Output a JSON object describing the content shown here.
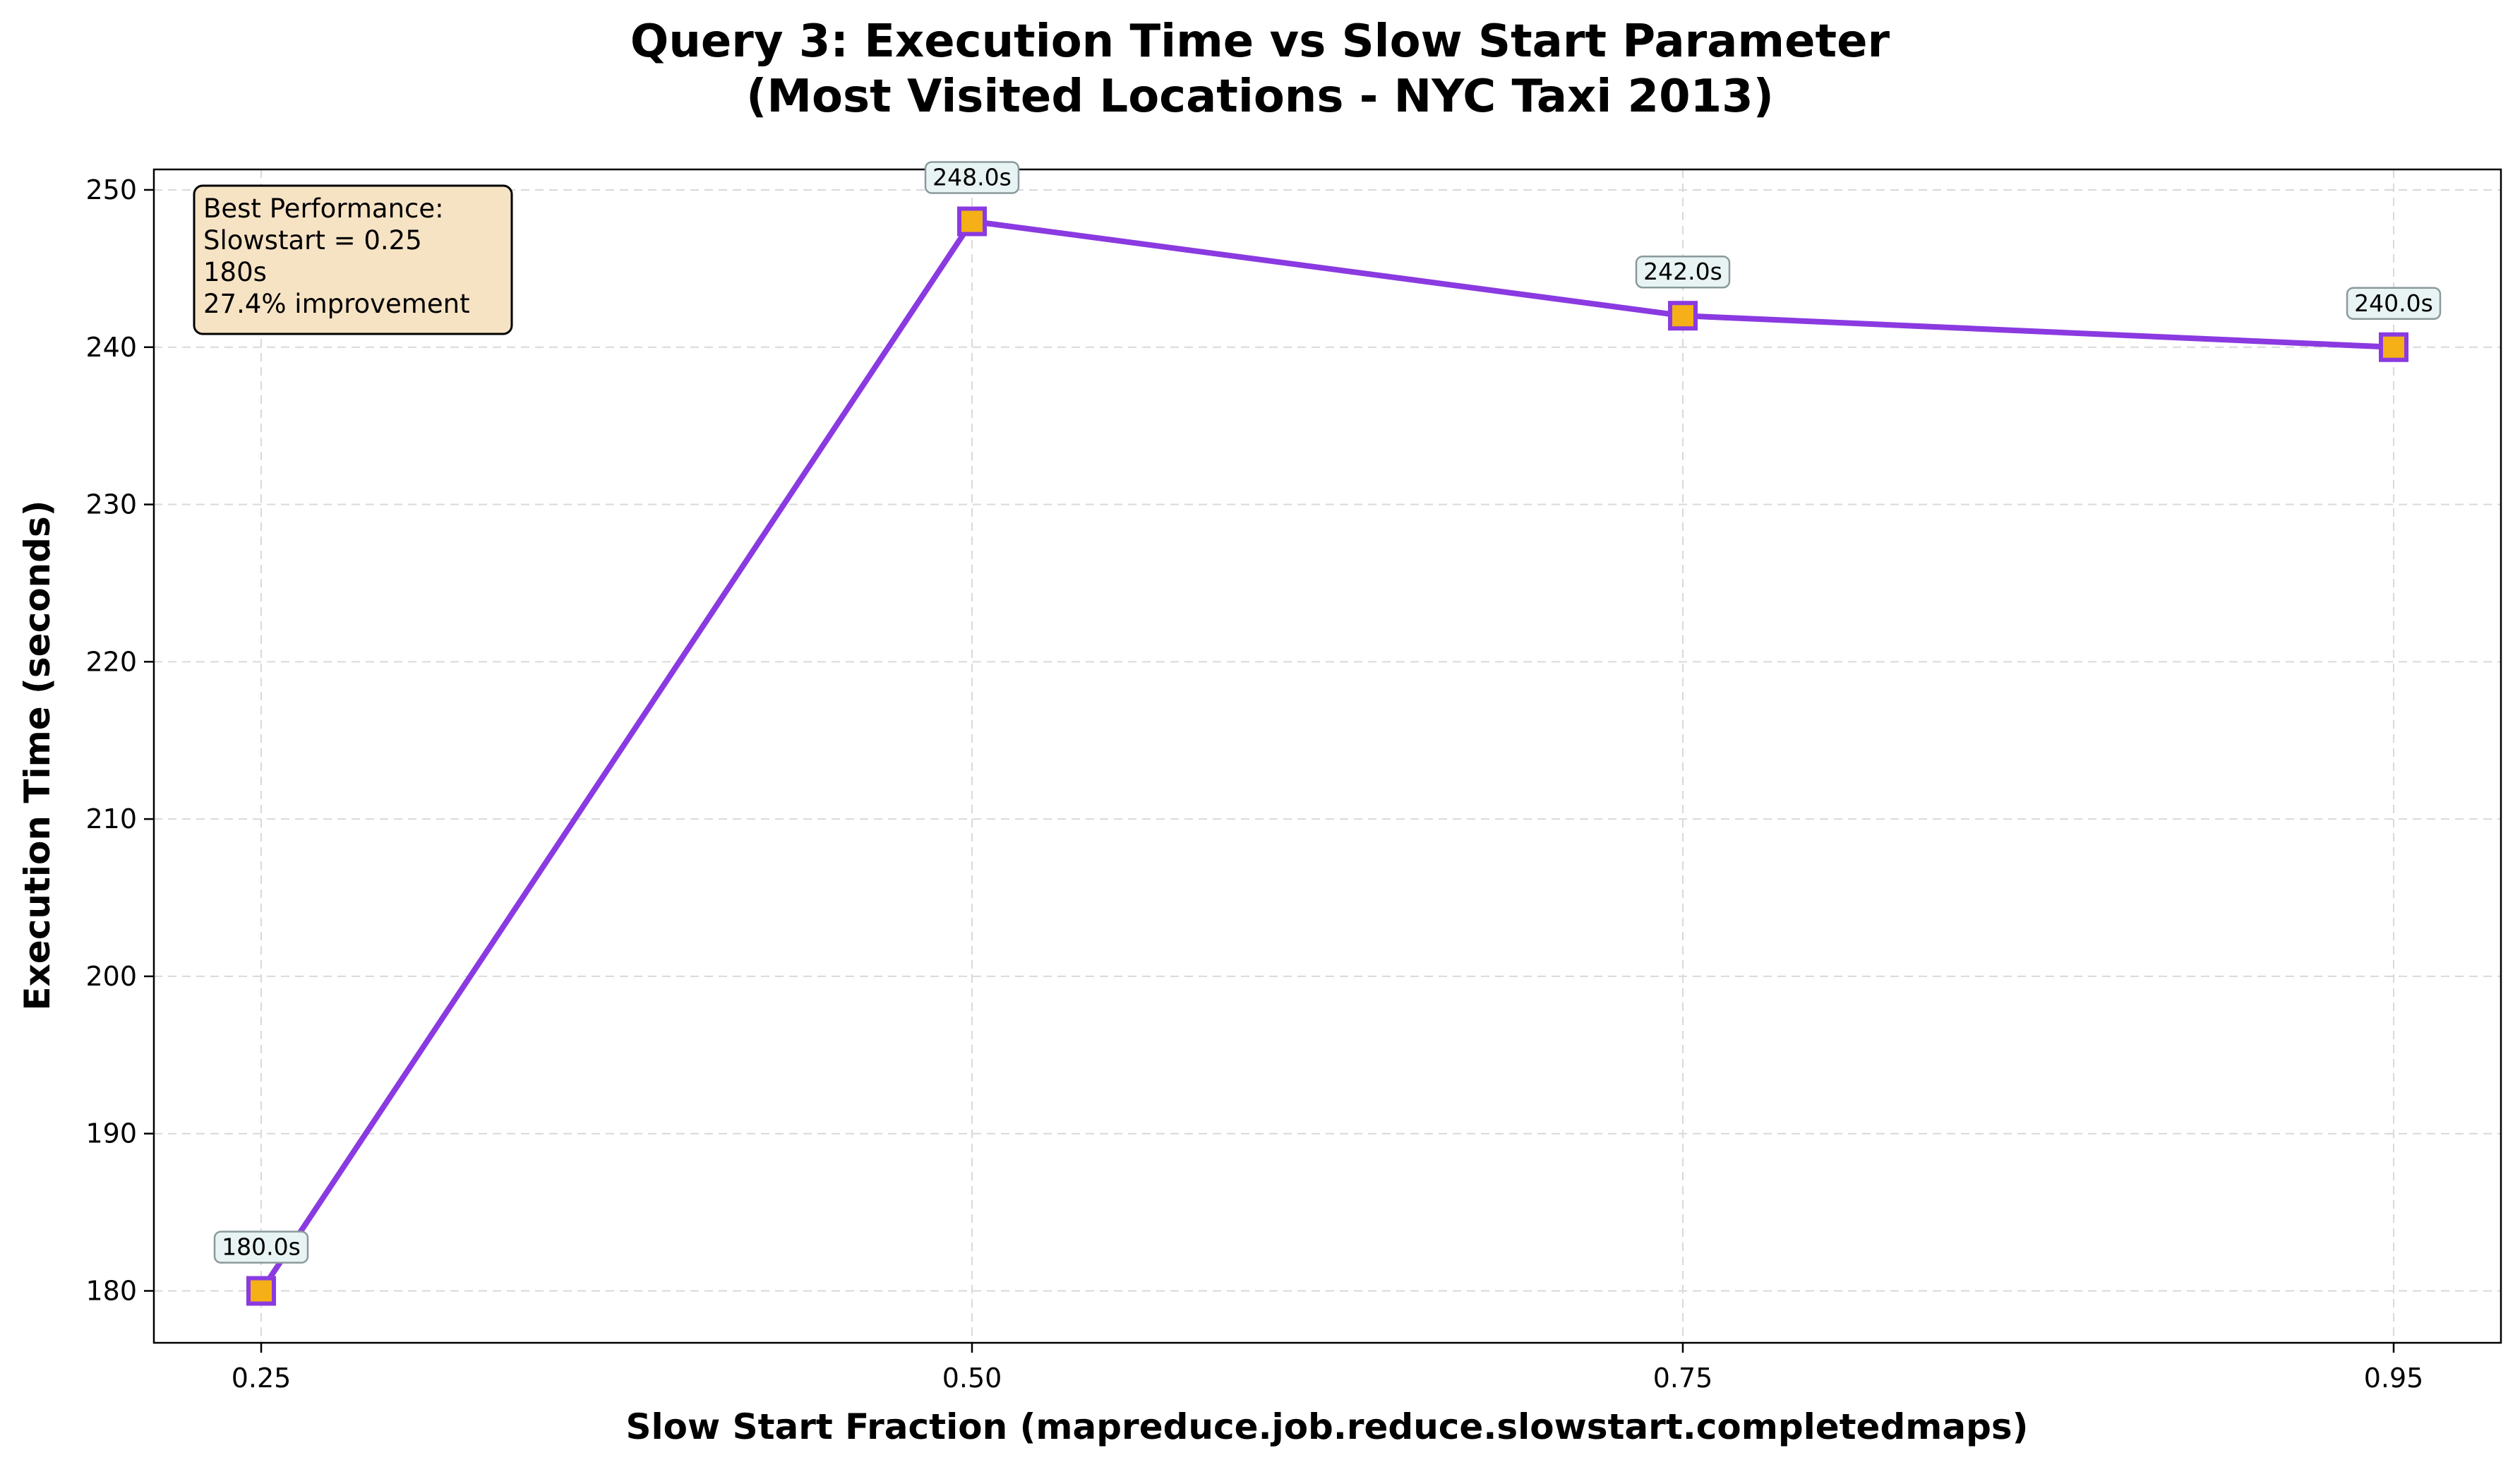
{
  "chart_data": {
    "type": "line",
    "title": "Query 3: Execution Time vs Slow Start Parameter",
    "subtitle": "(Most Visited Locations - NYC Taxi 2013)",
    "xlabel": "Slow Start Fraction (mapreduce.job.reduce.slowstart.completedmaps)",
    "ylabel": "Execution Time (seconds)",
    "categories": [
      "0.25",
      "0.50",
      "0.75",
      "0.95"
    ],
    "values": [
      180,
      248,
      242,
      240
    ],
    "data_labels": [
      "180.0s",
      "248.0s",
      "242.0s",
      "240.0s"
    ],
    "ylim": [
      176.7,
      251.3
    ],
    "yticks": [
      180,
      190,
      200,
      210,
      220,
      230,
      240,
      250
    ],
    "grid": true,
    "line_color": "#8a3ae0",
    "marker": "square",
    "marker_fill": "#f5b017",
    "marker_edge": "#8a3ae0",
    "label_box_fill": "#e8f3f3",
    "label_box_edge": "#8a9a9c",
    "annotation": {
      "placement": "top-left",
      "lines": [
        "Best Performance:",
        "Slowstart = 0.25",
        "180s",
        "27.4% improvement"
      ],
      "fill": "#f6e3c4",
      "edge": "#000000"
    }
  }
}
